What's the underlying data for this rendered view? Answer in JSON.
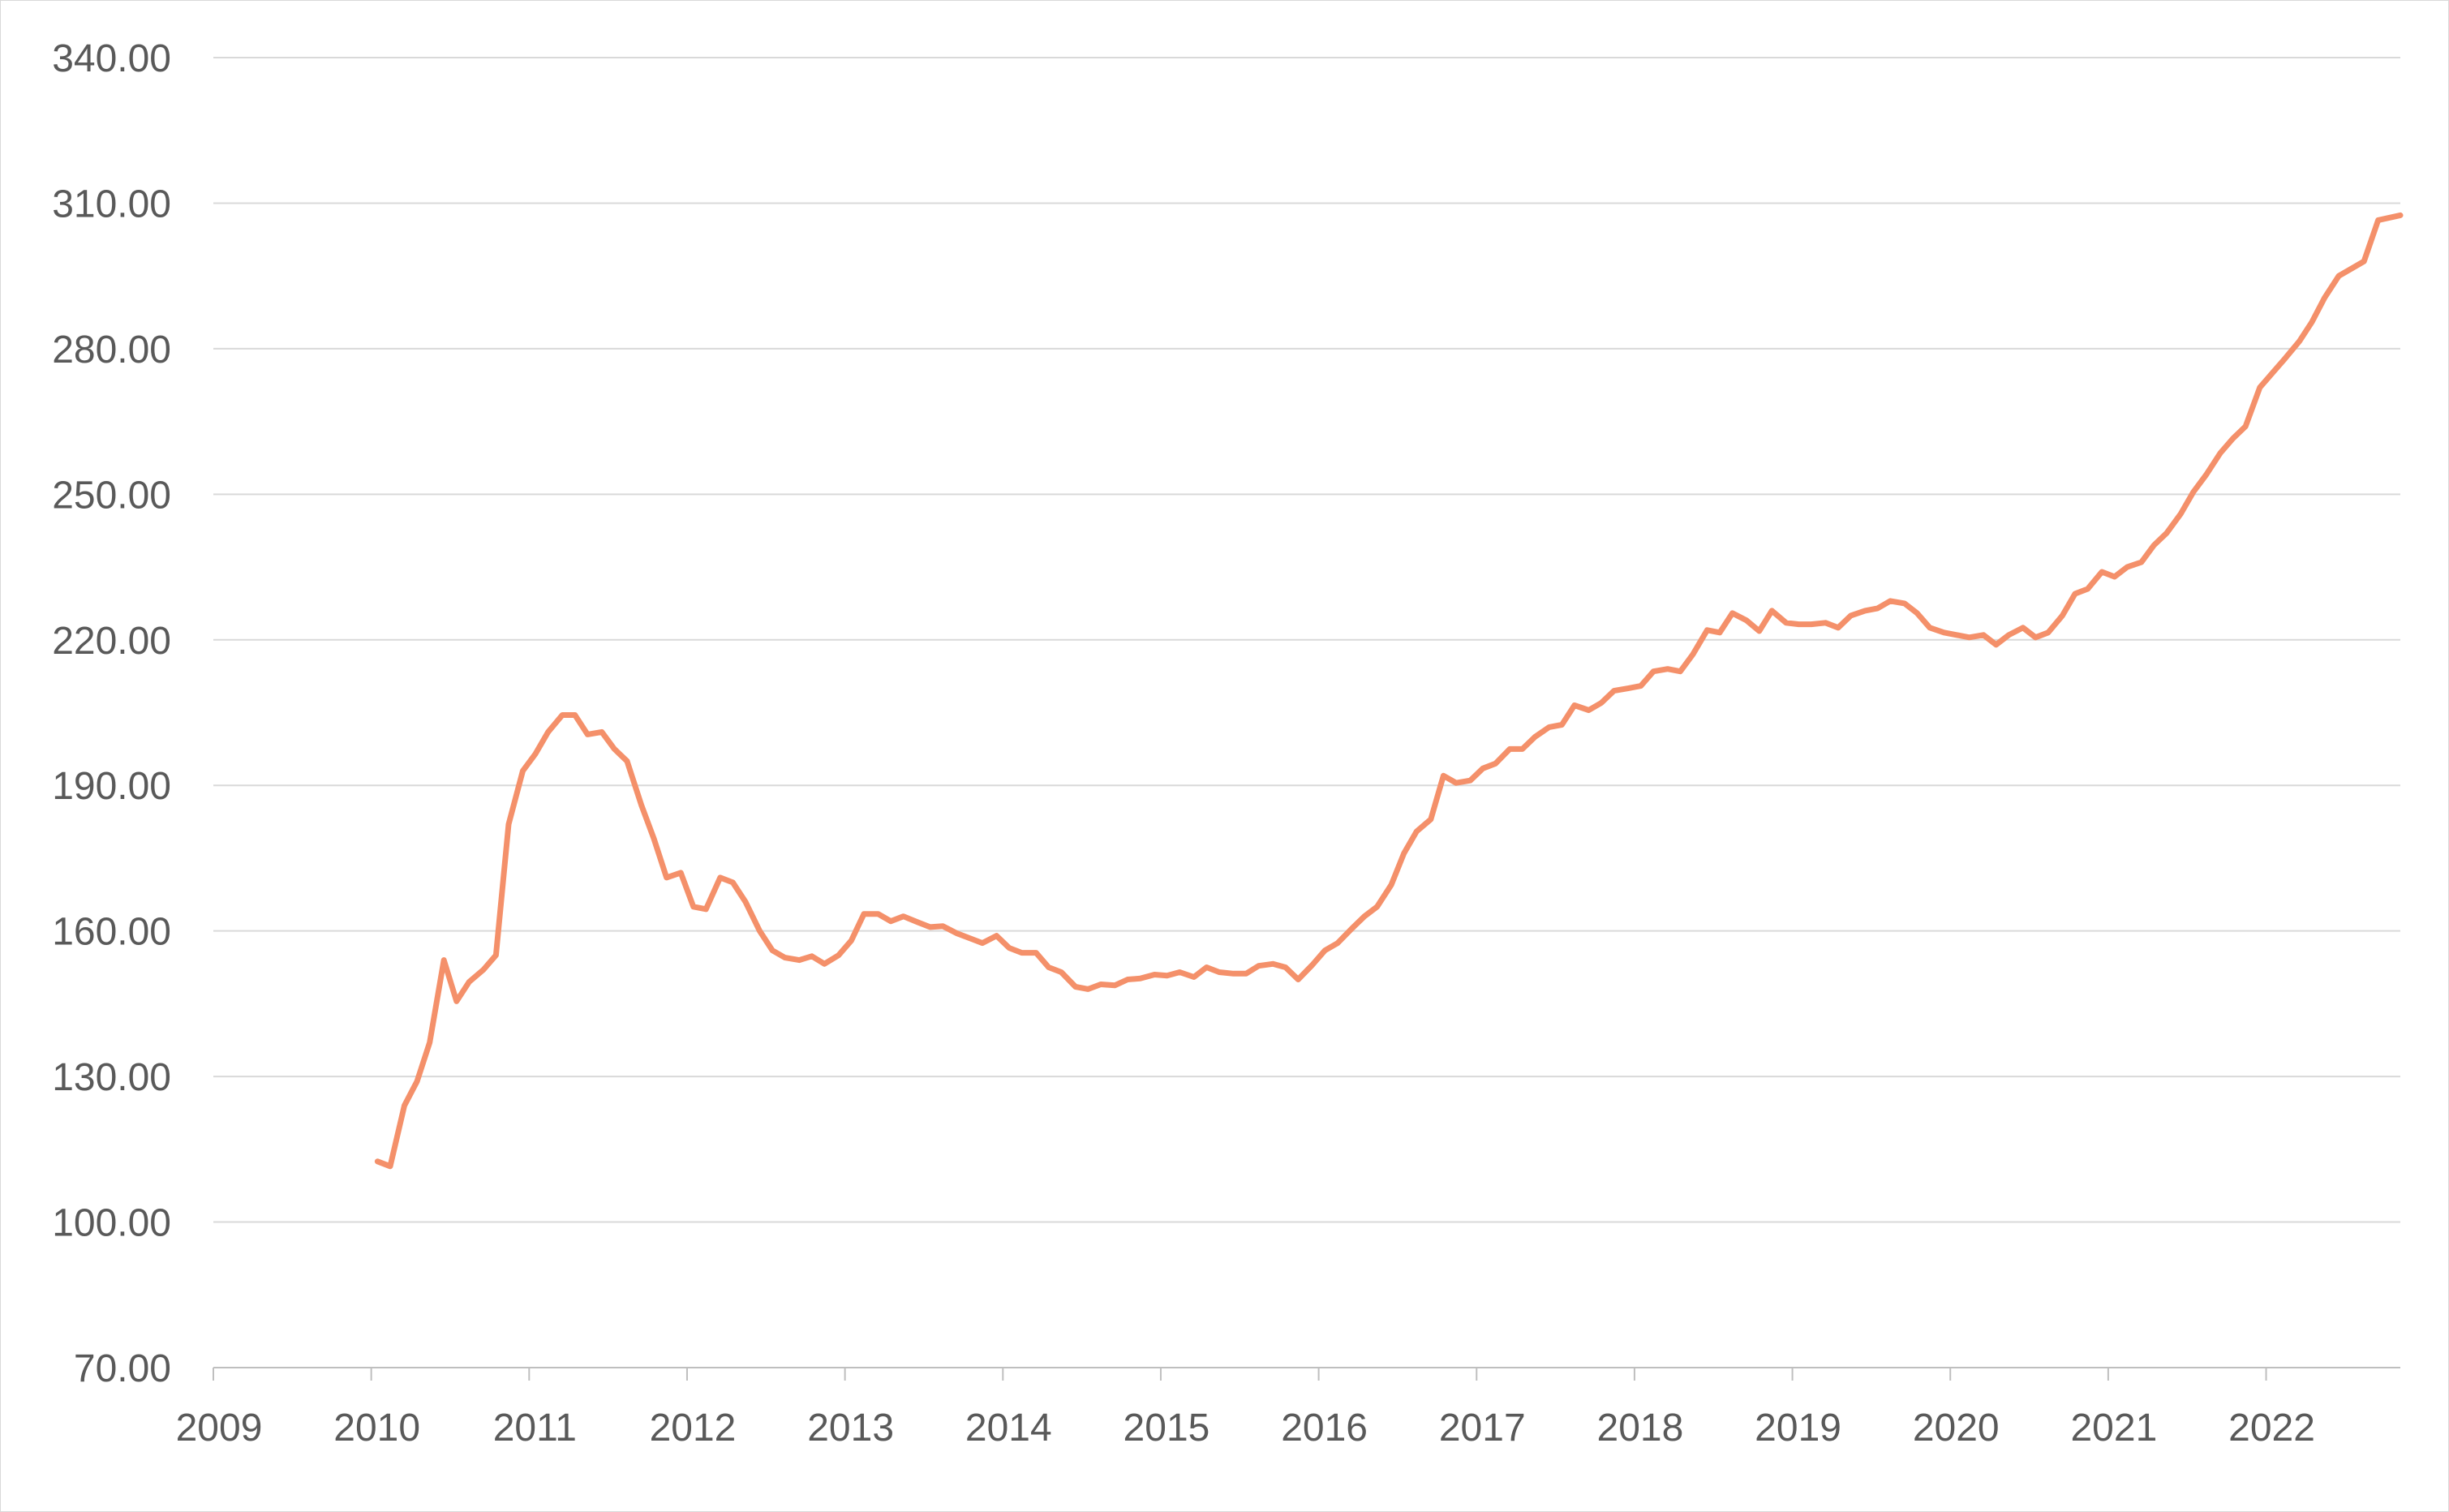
{
  "chart_data": {
    "type": "line",
    "title": "",
    "xlabel": "",
    "ylabel": "",
    "grid": true,
    "legend": "none",
    "xlim": [
      2009,
      2022.85
    ],
    "ylim": [
      70,
      340
    ],
    "x_ticks": [
      "2009",
      "2010",
      "2011",
      "2012",
      "2013",
      "2014",
      "2015",
      "2016",
      "2017",
      "2018",
      "2019",
      "2020",
      "2021",
      "2022"
    ],
    "y_ticks": [
      "70.00",
      "100.00",
      "130.00",
      "160.00",
      "190.00",
      "220.00",
      "250.00",
      "280.00",
      "310.00",
      "340.00"
    ],
    "colors": {
      "series": "#f4906a",
      "grid": "#d9d9d9",
      "axis": "#bfbfbf",
      "text": "#595959"
    },
    "series": [
      {
        "values": [
          [
            2010.04,
            112.5
          ],
          [
            2010.12,
            111.5
          ],
          [
            2010.21,
            124.0
          ],
          [
            2010.29,
            129.0
          ],
          [
            2010.37,
            137.0
          ],
          [
            2010.46,
            154.0
          ],
          [
            2010.54,
            145.5
          ],
          [
            2010.62,
            149.5
          ],
          [
            2010.71,
            152.0
          ],
          [
            2010.79,
            155.0
          ],
          [
            2010.87,
            182.0
          ],
          [
            2010.96,
            193.0
          ],
          [
            2011.04,
            196.5
          ],
          [
            2011.12,
            201.0
          ],
          [
            2011.21,
            204.5
          ],
          [
            2011.29,
            204.5
          ],
          [
            2011.37,
            200.5
          ],
          [
            2011.46,
            201.0
          ],
          [
            2011.54,
            197.5
          ],
          [
            2011.62,
            195.0
          ],
          [
            2011.71,
            186.0
          ],
          [
            2011.79,
            179.0
          ],
          [
            2011.87,
            171.0
          ],
          [
            2011.96,
            172.0
          ],
          [
            2012.04,
            165.0
          ],
          [
            2012.12,
            164.5
          ],
          [
            2012.21,
            171.0
          ],
          [
            2012.29,
            170.0
          ],
          [
            2012.37,
            166.0
          ],
          [
            2012.46,
            160.0
          ],
          [
            2012.54,
            156.0
          ],
          [
            2012.62,
            154.5
          ],
          [
            2012.71,
            154.0
          ],
          [
            2012.79,
            154.8
          ],
          [
            2012.87,
            153.2
          ],
          [
            2012.96,
            155.0
          ],
          [
            2013.04,
            158.0
          ],
          [
            2013.12,
            163.5
          ],
          [
            2013.21,
            163.5
          ],
          [
            2013.29,
            162.0
          ],
          [
            2013.37,
            163.0
          ],
          [
            2013.46,
            161.8
          ],
          [
            2013.54,
            160.8
          ],
          [
            2013.62,
            161.0
          ],
          [
            2013.71,
            159.5
          ],
          [
            2013.79,
            158.5
          ],
          [
            2013.87,
            157.5
          ],
          [
            2013.96,
            159.0
          ],
          [
            2014.04,
            156.5
          ],
          [
            2014.12,
            155.5
          ],
          [
            2014.21,
            155.5
          ],
          [
            2014.29,
            152.5
          ],
          [
            2014.37,
            151.5
          ],
          [
            2014.46,
            148.5
          ],
          [
            2014.54,
            148.0
          ],
          [
            2014.62,
            149.0
          ],
          [
            2014.71,
            148.8
          ],
          [
            2014.79,
            150.0
          ],
          [
            2014.87,
            150.2
          ],
          [
            2014.96,
            151.0
          ],
          [
            2015.04,
            150.8
          ],
          [
            2015.12,
            151.5
          ],
          [
            2015.21,
            150.5
          ],
          [
            2015.29,
            152.5
          ],
          [
            2015.37,
            151.5
          ],
          [
            2015.46,
            151.2
          ],
          [
            2015.54,
            151.2
          ],
          [
            2015.62,
            152.8
          ],
          [
            2015.71,
            153.2
          ],
          [
            2015.79,
            152.5
          ],
          [
            2015.87,
            150.0
          ],
          [
            2015.96,
            153.0
          ],
          [
            2016.04,
            156.0
          ],
          [
            2016.12,
            157.5
          ],
          [
            2016.21,
            160.5
          ],
          [
            2016.29,
            163.0
          ],
          [
            2016.37,
            165.0
          ],
          [
            2016.46,
            169.5
          ],
          [
            2016.54,
            176.0
          ],
          [
            2016.62,
            180.5
          ],
          [
            2016.71,
            183.0
          ],
          [
            2016.79,
            192.0
          ],
          [
            2016.87,
            190.5
          ],
          [
            2016.96,
            191.0
          ],
          [
            2017.04,
            193.5
          ],
          [
            2017.12,
            194.5
          ],
          [
            2017.21,
            197.5
          ],
          [
            2017.29,
            197.5
          ],
          [
            2017.37,
            200.0
          ],
          [
            2017.46,
            202.0
          ],
          [
            2017.54,
            202.5
          ],
          [
            2017.62,
            206.5
          ],
          [
            2017.71,
            205.5
          ],
          [
            2017.79,
            207.0
          ],
          [
            2017.87,
            209.5
          ],
          [
            2017.96,
            210.0
          ],
          [
            2018.04,
            210.5
          ],
          [
            2018.12,
            213.5
          ],
          [
            2018.21,
            214.0
          ],
          [
            2018.29,
            213.5
          ],
          [
            2018.37,
            217.0
          ],
          [
            2018.46,
            222.0
          ],
          [
            2018.54,
            221.5
          ],
          [
            2018.62,
            225.5
          ],
          [
            2018.71,
            224.0
          ],
          [
            2018.79,
            221.8
          ],
          [
            2018.87,
            226.0
          ],
          [
            2018.96,
            223.5
          ],
          [
            2019.04,
            223.2
          ],
          [
            2019.12,
            223.2
          ],
          [
            2019.21,
            223.5
          ],
          [
            2019.29,
            222.5
          ],
          [
            2019.37,
            225.0
          ],
          [
            2019.46,
            226.0
          ],
          [
            2019.54,
            226.5
          ],
          [
            2019.62,
            228.0
          ],
          [
            2019.71,
            227.5
          ],
          [
            2019.79,
            225.5
          ],
          [
            2019.87,
            222.5
          ],
          [
            2019.96,
            221.5
          ],
          [
            2020.04,
            221.0
          ],
          [
            2020.12,
            220.5
          ],
          [
            2020.21,
            221.0
          ],
          [
            2020.29,
            219.0
          ],
          [
            2020.37,
            221.0
          ],
          [
            2020.46,
            222.5
          ],
          [
            2020.54,
            220.5
          ],
          [
            2020.62,
            221.5
          ],
          [
            2020.71,
            225.0
          ],
          [
            2020.79,
            229.5
          ],
          [
            2020.87,
            230.5
          ],
          [
            2020.96,
            234.0
          ],
          [
            2021.04,
            233.0
          ],
          [
            2021.12,
            235.0
          ],
          [
            2021.21,
            236.0
          ],
          [
            2021.29,
            239.5
          ],
          [
            2021.37,
            242.0
          ],
          [
            2021.46,
            246.0
          ],
          [
            2021.54,
            250.5
          ],
          [
            2021.62,
            254.0
          ],
          [
            2021.71,
            258.5
          ],
          [
            2021.79,
            261.5
          ],
          [
            2021.87,
            264.0
          ],
          [
            2021.96,
            272.0
          ],
          [
            2022.04,
            275.0
          ],
          [
            2022.12,
            278.0
          ],
          [
            2022.21,
            281.5
          ],
          [
            2022.29,
            285.5
          ],
          [
            2022.37,
            290.5
          ],
          [
            2022.46,
            295.0
          ],
          [
            2022.54,
            296.5
          ],
          [
            2022.62,
            298.0
          ],
          [
            2022.71,
            306.5
          ],
          [
            2022.85,
            307.5
          ]
        ]
      }
    ]
  }
}
